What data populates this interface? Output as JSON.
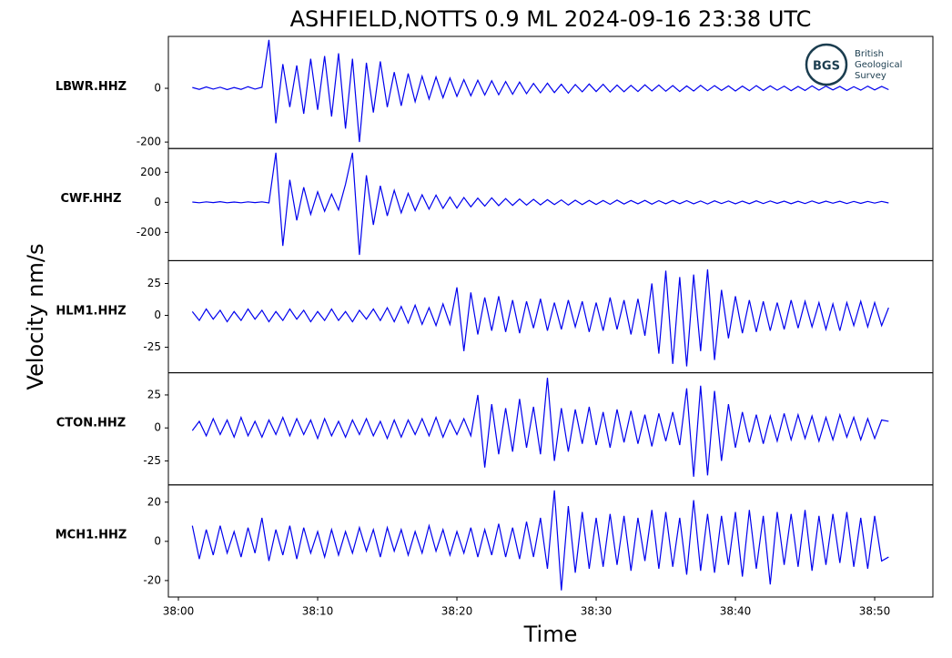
{
  "chart_data": {
    "type": "line",
    "title": "ASHFIELD,NOTTS 0.9 ML   2024-09-16 23:38 UTC",
    "x_label": "Time",
    "y_label": "Velocity nm/s",
    "color": "#0000ee",
    "logo": {
      "abbr": "BGS",
      "lines": [
        "British",
        "Geological",
        "Survey"
      ]
    },
    "xlim": [
      -0.72,
      54.18
    ],
    "xticks": [
      {
        "value": 0,
        "label": "38:00"
      },
      {
        "value": 10,
        "label": "38:10"
      },
      {
        "value": 20,
        "label": "38:20"
      },
      {
        "value": 30,
        "label": "38:30"
      },
      {
        "value": 40,
        "label": "38:40"
      },
      {
        "value": 50,
        "label": "38:50"
      }
    ],
    "x": [
      1,
      1.5,
      2,
      2.5,
      3,
      3.5,
      4,
      4.5,
      5,
      5.5,
      6,
      6.5,
      7,
      7.5,
      8,
      8.5,
      9,
      9.5,
      10,
      10.5,
      11,
      11.5,
      12,
      12.5,
      13,
      13.5,
      14,
      14.5,
      15,
      15.5,
      16,
      16.5,
      17,
      17.5,
      18,
      18.5,
      19,
      19.5,
      20,
      20.5,
      21,
      21.5,
      22,
      22.5,
      23,
      23.5,
      24,
      24.5,
      25,
      25.5,
      26,
      26.5,
      27,
      27.5,
      28,
      28.5,
      29,
      29.5,
      30,
      30.5,
      31,
      31.5,
      32,
      32.5,
      33,
      33.5,
      34,
      34.5,
      35,
      35.5,
      36,
      36.5,
      37,
      37.5,
      38,
      38.5,
      39,
      39.5,
      40,
      40.5,
      41,
      41.5,
      42,
      42.5,
      43,
      43.5,
      44,
      44.5,
      45,
      45.5,
      46,
      46.5,
      47,
      47.5,
      48,
      48.5,
      49,
      49.5,
      50,
      50.5,
      51
    ],
    "panels": [
      {
        "label": "LBWR.HHZ",
        "ylim": [
          -224,
          193
        ],
        "yticks": [
          -200,
          0
        ],
        "values": [
          3,
          -4,
          5,
          -3,
          4,
          -5,
          3,
          -4,
          6,
          -3,
          4,
          180,
          -130,
          90,
          -70,
          85,
          -95,
          110,
          -80,
          120,
          -105,
          130,
          -150,
          110,
          -200,
          95,
          -90,
          100,
          -70,
          60,
          -65,
          55,
          -50,
          45,
          -40,
          42,
          -35,
          38,
          -30,
          32,
          -28,
          30,
          -25,
          28,
          -24,
          25,
          -22,
          23,
          -20,
          18,
          -17,
          19,
          -16,
          15,
          -18,
          14,
          -13,
          16,
          -12,
          15,
          -14,
          12,
          -13,
          11,
          -12,
          13,
          -10,
          12,
          -11,
          10,
          -12,
          9,
          -10,
          11,
          -9,
          10,
          -8,
          9,
          -10,
          8,
          -9,
          10,
          -8,
          9,
          -7,
          8,
          -9,
          7,
          -8,
          9,
          -7,
          8,
          -6,
          7,
          -8,
          6,
          -7,
          8,
          -6,
          7,
          -5
        ]
      },
      {
        "label": "CWF.HHZ",
        "ylim": [
          -388,
          358
        ],
        "yticks": [
          -200,
          0,
          200
        ],
        "values": [
          2,
          -3,
          3,
          -2,
          4,
          -3,
          2,
          -3,
          3,
          -2,
          3,
          -4,
          330,
          -290,
          150,
          -120,
          100,
          -80,
          70,
          -60,
          55,
          -50,
          120,
          330,
          -350,
          180,
          -150,
          110,
          -90,
          80,
          -70,
          60,
          -55,
          50,
          -45,
          48,
          -40,
          35,
          -38,
          32,
          -30,
          28,
          -25,
          30,
          -22,
          25,
          -20,
          22,
          -18,
          20,
          -17,
          18,
          -15,
          16,
          -18,
          14,
          -15,
          13,
          -14,
          12,
          -13,
          15,
          -11,
          12,
          -10,
          13,
          -12,
          11,
          -10,
          12,
          -9,
          11,
          -10,
          9,
          -11,
          10,
          -8,
          9,
          -10,
          8,
          -9,
          10,
          -8,
          9,
          -7,
          8,
          -9,
          7,
          -8,
          9,
          -7,
          8,
          -6,
          7,
          -8,
          6,
          -7,
          6,
          -5,
          6,
          -4
        ]
      },
      {
        "label": "HLM1.HHZ",
        "ylim": [
          -45,
          42.9
        ],
        "yticks": [
          -25,
          0,
          25
        ],
        "values": [
          3,
          -4,
          5,
          -3,
          4,
          -5,
          3,
          -4,
          5,
          -3,
          4,
          -5,
          3,
          -4,
          5,
          -3,
          4,
          -5,
          3,
          -4,
          5,
          -4,
          3,
          -5,
          4,
          -3,
          5,
          -4,
          6,
          -5,
          7,
          -6,
          8,
          -7,
          6,
          -8,
          9,
          -7,
          22,
          -28,
          18,
          -15,
          14,
          -12,
          15,
          -13,
          12,
          -14,
          11,
          -10,
          13,
          -12,
          10,
          -11,
          12,
          -9,
          11,
          -13,
          10,
          -12,
          14,
          -11,
          12,
          -15,
          13,
          -16,
          25,
          -30,
          35,
          -38,
          30,
          -40,
          32,
          -28,
          36,
          -35,
          20,
          -18,
          15,
          -14,
          12,
          -13,
          11,
          -12,
          10,
          -11,
          12,
          -10,
          11,
          -9,
          10,
          -11,
          9,
          -12,
          10,
          -8,
          11,
          -9,
          10,
          -8,
          6
        ]
      },
      {
        "label": "CTON.HHZ",
        "ylim": [
          -43.2,
          41.8
        ],
        "yticks": [
          -25,
          0,
          25
        ],
        "values": [
          -2,
          5,
          -6,
          7,
          -5,
          6,
          -7,
          8,
          -6,
          5,
          -7,
          6,
          -5,
          8,
          -6,
          7,
          -5,
          6,
          -8,
          7,
          -6,
          5,
          -7,
          6,
          -5,
          7,
          -6,
          5,
          -8,
          6,
          -7,
          6,
          -5,
          7,
          -6,
          8,
          -7,
          6,
          -5,
          7,
          -6,
          25,
          -30,
          18,
          -20,
          15,
          -18,
          22,
          -15,
          16,
          -20,
          38,
          -25,
          15,
          -18,
          14,
          -12,
          16,
          -13,
          12,
          -15,
          14,
          -11,
          13,
          -12,
          10,
          -14,
          11,
          -10,
          12,
          -13,
          30,
          -37,
          32,
          -36,
          28,
          -25,
          18,
          -15,
          12,
          -11,
          10,
          -12,
          9,
          -10,
          11,
          -9,
          10,
          -8,
          9,
          -10,
          8,
          -9,
          10,
          -7,
          8,
          -9,
          7,
          -8,
          6,
          5
        ]
      },
      {
        "label": "MCH1.HHZ",
        "ylim": [
          -28.4,
          28.8
        ],
        "yticks": [
          -20,
          0,
          20
        ],
        "values": [
          8,
          -9,
          6,
          -7,
          8,
          -6,
          5,
          -8,
          7,
          -6,
          12,
          -10,
          6,
          -7,
          8,
          -9,
          7,
          -6,
          5,
          -8,
          6,
          -7,
          5,
          -6,
          7,
          -5,
          6,
          -8,
          7,
          -5,
          6,
          -7,
          5,
          -6,
          8,
          -5,
          6,
          -7,
          5,
          -6,
          7,
          -8,
          6,
          -7,
          9,
          -8,
          7,
          -9,
          10,
          -8,
          12,
          -14,
          26,
          -25,
          18,
          -16,
          15,
          -14,
          12,
          -13,
          14,
          -12,
          13,
          -15,
          12,
          -10,
          16,
          -14,
          15,
          -13,
          12,
          -17,
          21,
          -15,
          14,
          -16,
          13,
          -12,
          15,
          -18,
          16,
          -14,
          13,
          -22,
          15,
          -12,
          14,
          -13,
          16,
          -15,
          13,
          -12,
          14,
          -11,
          15,
          -13,
          12,
          -14,
          13,
          -10,
          -8
        ]
      }
    ]
  }
}
